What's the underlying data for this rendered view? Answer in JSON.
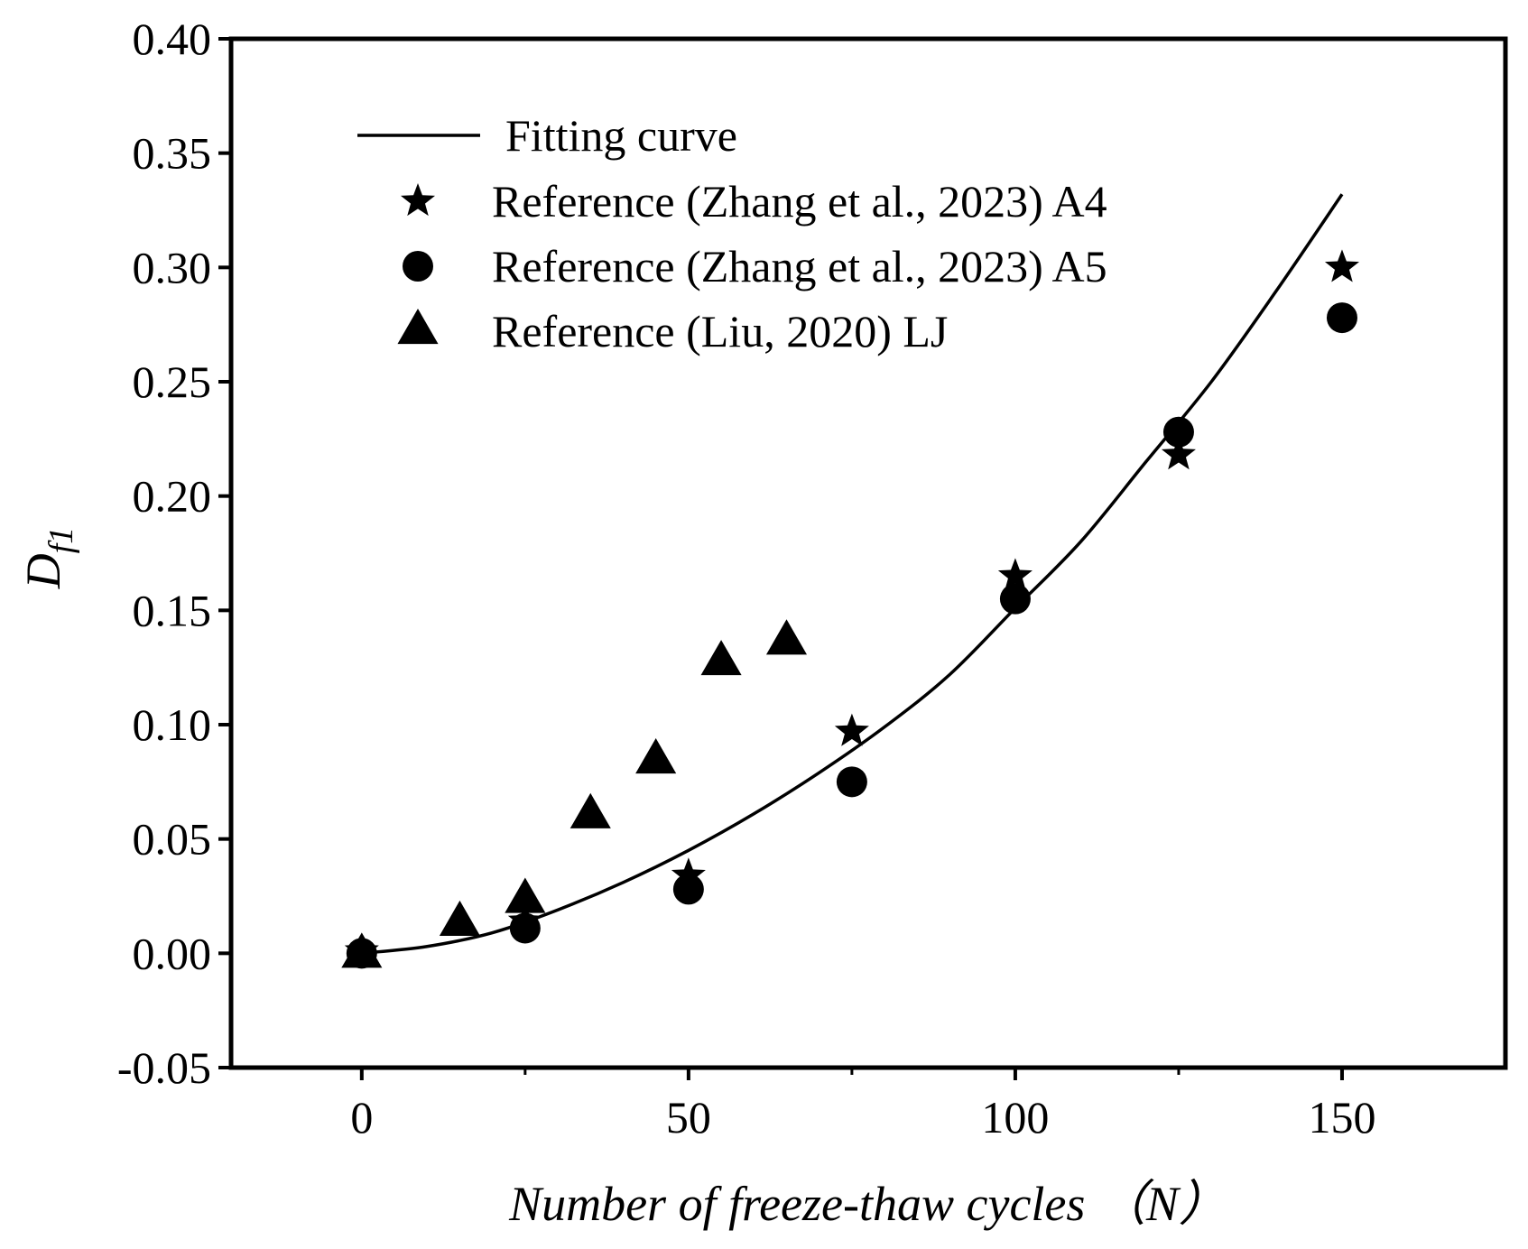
{
  "chart_data": {
    "type": "scatter",
    "title": "",
    "xlabel": "Number of freeze-thaw cycles （N）",
    "ylabel_main": "D",
    "ylabel_sub": "f1",
    "xlim": [
      -20,
      175
    ],
    "ylim": [
      -0.05,
      0.4
    ],
    "xticks": [
      0,
      50,
      100,
      150
    ],
    "xtick_labels": [
      "0",
      "50",
      "100",
      "150"
    ],
    "yticks": [
      -0.05,
      0.0,
      0.05,
      0.1,
      0.15,
      0.2,
      0.25,
      0.3,
      0.35,
      0.4
    ],
    "ytick_labels": [
      "-0.05",
      "0.00",
      "0.05",
      "0.10",
      "0.15",
      "0.20",
      "0.25",
      "0.30",
      "0.35",
      "0.40"
    ],
    "grid": false,
    "legend_position": "top-left",
    "fit": {
      "name": "Fitting curve",
      "x": [
        0,
        10,
        20,
        30,
        40,
        50,
        60,
        70,
        80,
        90,
        100,
        110,
        120,
        130,
        140,
        150
      ],
      "y": [
        0,
        0.003,
        0.009,
        0.019,
        0.031,
        0.045,
        0.061,
        0.079,
        0.099,
        0.122,
        0.151,
        0.18,
        0.215,
        0.25,
        0.29,
        0.332
      ]
    },
    "series": [
      {
        "name": "Reference (Zhang et al., 2023) A4",
        "marker": "star",
        "x": [
          0,
          25,
          50,
          75,
          100,
          125,
          150
        ],
        "y": [
          0.001,
          0.014,
          0.034,
          0.097,
          0.165,
          0.218,
          0.3
        ]
      },
      {
        "name": "Reference (Zhang et al., 2023) A5",
        "marker": "circle",
        "x": [
          0,
          25,
          50,
          75,
          100,
          125,
          150
        ],
        "y": [
          0.0,
          0.011,
          0.028,
          0.075,
          0.155,
          0.228,
          0.278
        ]
      },
      {
        "name": "Reference (Liu, 2020) LJ",
        "marker": "triangle",
        "x": [
          0,
          15,
          25,
          35,
          45,
          55,
          65
        ],
        "y": [
          0.0,
          0.014,
          0.024,
          0.061,
          0.085,
          0.128,
          0.137
        ]
      }
    ]
  }
}
